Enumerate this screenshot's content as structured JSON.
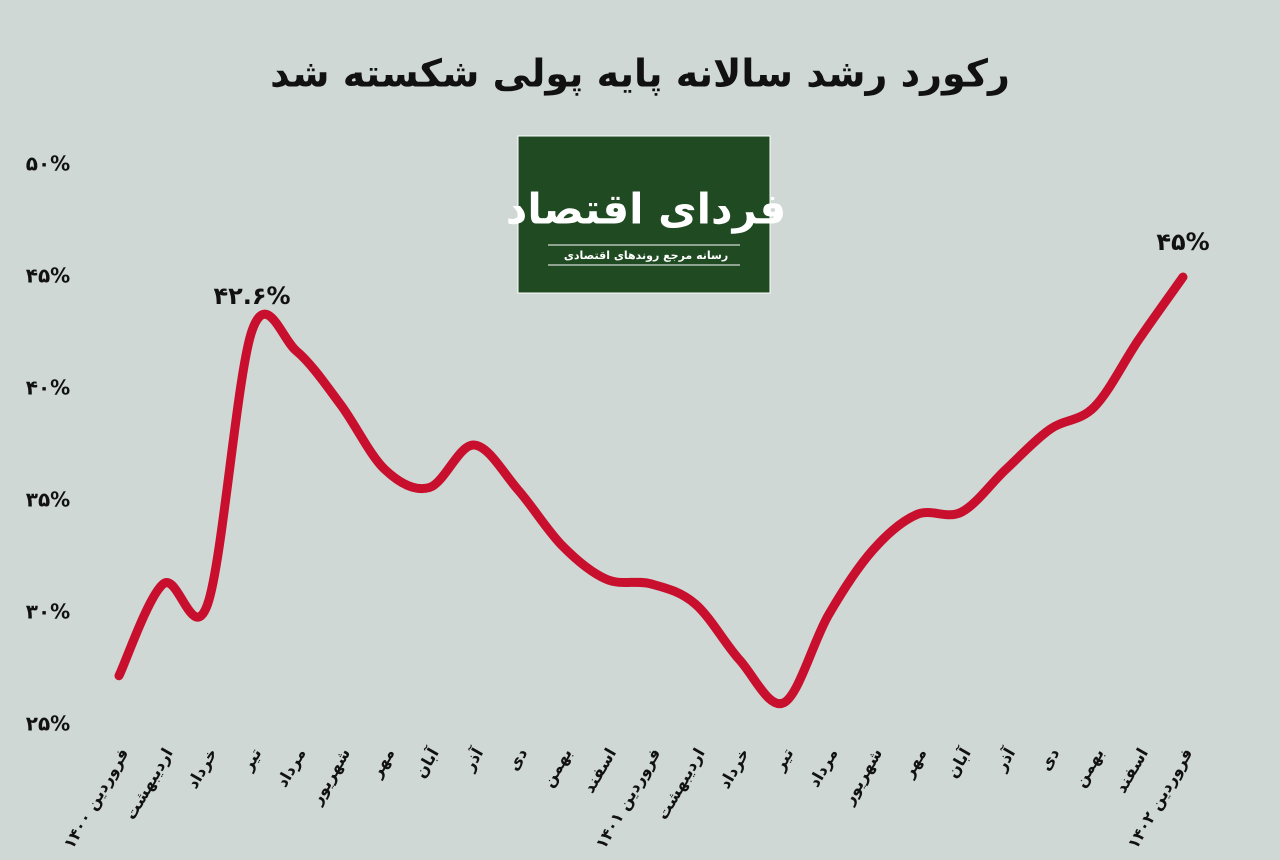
{
  "chart_data": {
    "type": "line",
    "title": "رکورد رشد سالانه پایه پولی شکسته شد",
    "categories": [
      "فروردین ۱۴۰۰",
      "اردیبهشت",
      "خرداد",
      "تیر",
      "مرداد",
      "شهریور",
      "مهر",
      "آبان",
      "آذر",
      "دی",
      "بهمن",
      "اسفند",
      "فروردین ۱۴۰۱",
      "اردیبهشت",
      "خرداد",
      "تیر",
      "مرداد",
      "شهریور",
      "مهر",
      "آبان",
      "آذر",
      "دی",
      "بهمن",
      "اسفند",
      "فروردین ۱۴۰۲"
    ],
    "values": [
      27.2,
      31.3,
      30.4,
      42.6,
      41.7,
      39.3,
      36.4,
      35.6,
      37.5,
      35.5,
      33.0,
      31.5,
      31.3,
      30.4,
      27.9,
      26.0,
      29.9,
      32.8,
      34.4,
      34.5,
      36.4,
      38.2,
      39.2,
      42.2,
      45
    ],
    "value_labels": [
      null,
      null,
      null,
      "۴۲.۶%",
      null,
      null,
      null,
      null,
      null,
      null,
      null,
      null,
      null,
      null,
      null,
      null,
      null,
      null,
      null,
      null,
      null,
      null,
      null,
      null,
      "۴۵%"
    ],
    "color": "#c8102e",
    "ylim": [
      25,
      50
    ],
    "yticks": [
      {
        "value": 25,
        "label": "۲۵%"
      },
      {
        "value": 30,
        "label": "۳۰%"
      },
      {
        "value": 35,
        "label": "۳۵%"
      },
      {
        "value": 40,
        "label": "۴۰%"
      },
      {
        "value": 45,
        "label": "۴۵%"
      },
      {
        "value": 50,
        "label": "۵۰%"
      }
    ],
    "grid": false
  },
  "logo": {
    "name": "فردای اقتصاد",
    "tagline": "رسانه مرجع روندهای اقتصادی"
  }
}
